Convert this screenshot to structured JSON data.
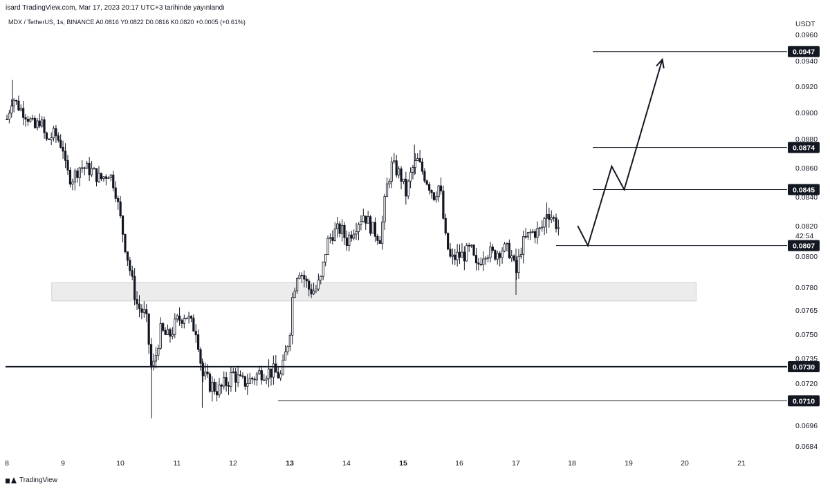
{
  "header": {
    "text": "isard TradingView.com, Mar 17, 2023 20:17 UTC+3 tarihinde yayınlandı"
  },
  "symbol_line": {
    "text": "MDX / TetherUS, 1s, BINANCE  A0.0816  Y0.0822  D0.0816  K0.0820  +0.0005 (+0.61%)"
  },
  "footer": {
    "brand": "TradingView"
  },
  "colors": {
    "candle": "#131722",
    "zone": "#ececec",
    "badge": "#131722"
  },
  "chart_data": {
    "type": "candlestick",
    "currency": "USDT",
    "countdown": "42:54",
    "y_ticks": [
      "0.0960",
      "0.0940",
      "0.0920",
      "0.0900",
      "0.0880",
      "0.0860",
      "0.0840",
      "0.0820",
      "0.0800",
      "0.0780",
      "0.0765",
      "0.0750",
      "0.0735",
      "0.0720",
      "0.0696",
      "0.0684"
    ],
    "x_ticks": [
      "8",
      "9",
      "10",
      "11",
      "12",
      "13",
      "14",
      "15",
      "16",
      "17",
      "18",
      "19",
      "20",
      "21"
    ],
    "bold_x_ticks": [
      "13",
      "15"
    ],
    "price_levels": [
      {
        "label": "0.0947",
        "value": 0.0947
      },
      {
        "label": "0.0874",
        "value": 0.0874
      },
      {
        "label": "0.0845",
        "value": 0.0845
      },
      {
        "label": "0.0807",
        "value": 0.0807
      },
      {
        "label": "0.0730",
        "value": 0.073
      },
      {
        "label": "0.0710",
        "value": 0.071
      }
    ],
    "support_zone": {
      "from_day": 8.8,
      "to_day": 20.2,
      "low": 0.0771,
      "high": 0.0783
    },
    "projection_path": [
      {
        "day": 18.1,
        "price": 0.082
      },
      {
        "day": 18.28,
        "price": 0.0807
      },
      {
        "day": 18.7,
        "price": 0.0861
      },
      {
        "day": 18.92,
        "price": 0.0845
      },
      {
        "day": 19.6,
        "price": 0.0941
      }
    ],
    "close_path": [
      [
        8.0,
        0.0895
      ],
      [
        8.1,
        0.0912
      ],
      [
        8.2,
        0.0905
      ],
      [
        8.35,
        0.0898
      ],
      [
        8.5,
        0.0888
      ],
      [
        8.6,
        0.0895
      ],
      [
        8.7,
        0.0878
      ],
      [
        8.85,
        0.0884
      ],
      [
        9.0,
        0.0874
      ],
      [
        9.05,
        0.0858
      ],
      [
        9.15,
        0.0852
      ],
      [
        9.3,
        0.0861
      ],
      [
        9.5,
        0.0858
      ],
      [
        9.65,
        0.0852
      ],
      [
        9.8,
        0.0857
      ],
      [
        9.9,
        0.0848
      ],
      [
        10.0,
        0.0825
      ],
      [
        10.08,
        0.0808
      ],
      [
        10.15,
        0.0795
      ],
      [
        10.22,
        0.0781
      ],
      [
        10.3,
        0.0768
      ],
      [
        10.45,
        0.0761
      ],
      [
        10.5,
        0.0745
      ],
      [
        10.55,
        0.0728
      ],
      [
        10.6,
        0.0732
      ],
      [
        10.7,
        0.0752
      ],
      [
        10.85,
        0.0748
      ],
      [
        11.0,
        0.0758
      ],
      [
        11.15,
        0.0763
      ],
      [
        11.25,
        0.0756
      ],
      [
        11.35,
        0.0753
      ],
      [
        11.45,
        0.0725
      ],
      [
        11.6,
        0.0719
      ],
      [
        11.75,
        0.0716
      ],
      [
        11.9,
        0.0721
      ],
      [
        12.0,
        0.0726
      ],
      [
        12.15,
        0.072
      ],
      [
        12.3,
        0.0722
      ],
      [
        12.5,
        0.0727
      ],
      [
        12.7,
        0.0727
      ],
      [
        12.85,
        0.0724
      ],
      [
        13.0,
        0.0752
      ],
      [
        13.05,
        0.0775
      ],
      [
        13.15,
        0.0793
      ],
      [
        13.25,
        0.0786
      ],
      [
        13.35,
        0.0778
      ],
      [
        13.45,
        0.0778
      ],
      [
        13.55,
        0.0785
      ],
      [
        13.65,
        0.0808
      ],
      [
        13.75,
        0.0815
      ],
      [
        13.9,
        0.0818
      ],
      [
        14.0,
        0.081
      ],
      [
        14.15,
        0.082
      ],
      [
        14.3,
        0.0828
      ],
      [
        14.45,
        0.0818
      ],
      [
        14.6,
        0.0812
      ],
      [
        14.7,
        0.0845
      ],
      [
        14.8,
        0.0862
      ],
      [
        14.95,
        0.0855
      ],
      [
        15.05,
        0.0842
      ],
      [
        15.15,
        0.0858
      ],
      [
        15.25,
        0.0865
      ],
      [
        15.35,
        0.0857
      ],
      [
        15.45,
        0.0849
      ],
      [
        15.55,
        0.0841
      ],
      [
        15.65,
        0.0849
      ],
      [
        15.75,
        0.0812
      ],
      [
        15.85,
        0.0797
      ],
      [
        15.95,
        0.08
      ],
      [
        16.1,
        0.0801
      ],
      [
        16.2,
        0.0805
      ],
      [
        16.3,
        0.0792
      ],
      [
        16.45,
        0.0804
      ],
      [
        16.6,
        0.0801
      ],
      [
        16.75,
        0.0805
      ],
      [
        16.9,
        0.0803
      ],
      [
        17.0,
        0.0788
      ],
      [
        17.1,
        0.0807
      ],
      [
        17.25,
        0.0815
      ],
      [
        17.45,
        0.0817
      ],
      [
        17.55,
        0.083
      ],
      [
        17.65,
        0.0826
      ],
      [
        17.75,
        0.0819
      ]
    ]
  }
}
